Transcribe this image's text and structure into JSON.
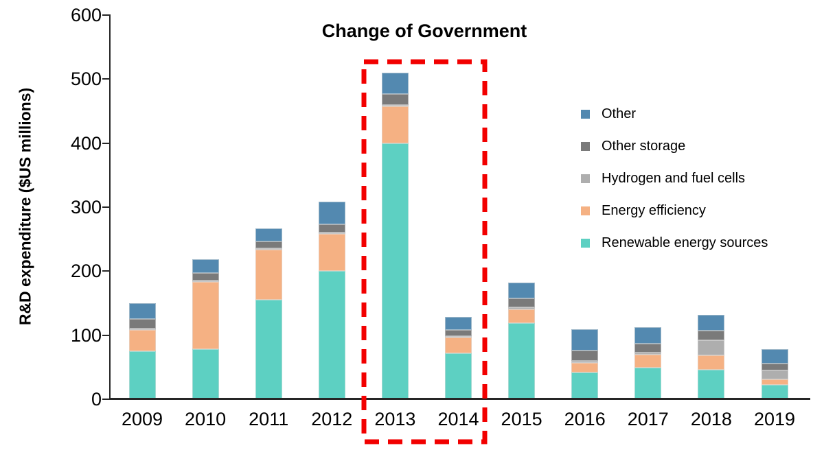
{
  "chart_data": {
    "type": "bar",
    "stacked": true,
    "ylabel": "R&D expenditure ($US millions)",
    "ylim": [
      0,
      600
    ],
    "yticks": [
      0,
      100,
      200,
      300,
      400,
      500,
      600
    ],
    "grid": false,
    "legend_position": "right",
    "annotation": {
      "text": "Change of Government",
      "highlight_years": [
        "2013",
        "2014"
      ],
      "box_color": "#f20000",
      "box_style": "dashed"
    },
    "categories": [
      "2009",
      "2010",
      "2011",
      "2012",
      "2013",
      "2014",
      "2015",
      "2016",
      "2017",
      "2018",
      "2019"
    ],
    "series": [
      {
        "name": "Renewable energy sources",
        "color": "#5dd0c2",
        "values": [
          75,
          78,
          155,
          200,
          400,
          72,
          119,
          42,
          49,
          46,
          23
        ]
      },
      {
        "name": "Energy efficiency",
        "color": "#f5b183",
        "values": [
          33,
          105,
          79,
          58,
          57,
          24,
          21,
          15,
          21,
          23,
          8
        ]
      },
      {
        "name": "Hydrogen and fuel cells",
        "color": "#aeaeae",
        "values": [
          2,
          2,
          2,
          2,
          3,
          3,
          4,
          3,
          3,
          23,
          14
        ]
      },
      {
        "name": "Other storage",
        "color": "#7a7a7a",
        "values": [
          15,
          12,
          10,
          13,
          17,
          9,
          13,
          16,
          14,
          15,
          11
        ]
      },
      {
        "name": "Other",
        "color": "#5389b0",
        "values": [
          25,
          22,
          21,
          36,
          33,
          21,
          25,
          33,
          25,
          25,
          22
        ]
      }
    ],
    "totals": [
      150,
      219,
      267,
      309,
      510,
      129,
      182,
      109,
      112,
      132,
      78
    ],
    "axis_color": "#262626",
    "text_color": "#000000"
  }
}
